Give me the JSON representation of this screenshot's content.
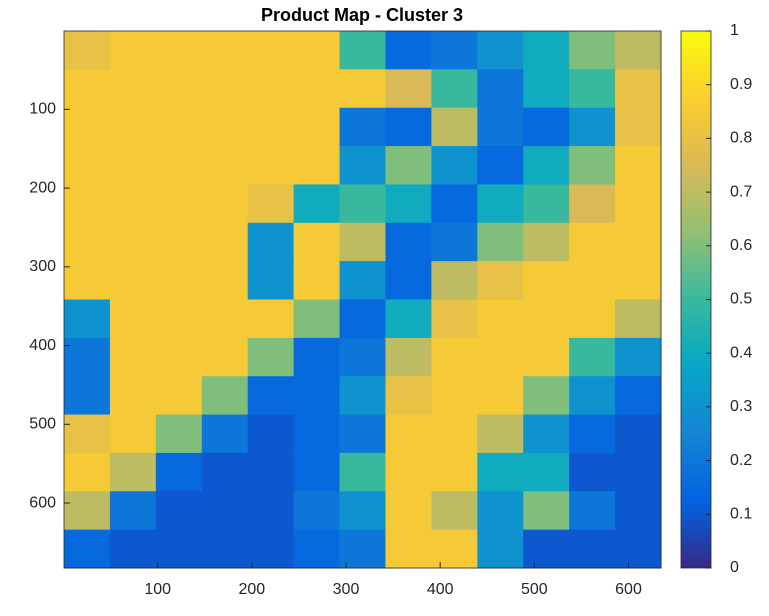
{
  "chart_data": {
    "type": "heatmap",
    "title": "Product Map - Cluster 3",
    "xlim": [
      0.5,
      634.5
    ],
    "xticks": [
      100,
      200,
      300,
      400,
      500,
      600
    ],
    "ylim": [
      0.5,
      682.5
    ],
    "yticks": [
      100,
      200,
      300,
      400,
      500,
      600
    ],
    "y_reversed": true,
    "clim": [
      0,
      1
    ],
    "cticks": [
      0,
      0.1,
      0.2,
      0.3,
      0.4,
      0.5,
      0.6,
      0.7,
      0.8,
      0.9,
      1
    ],
    "colormap": [
      "#352a87",
      "#0363e1",
      "#1485d4",
      "#06a7c6",
      "#38b99e",
      "#92bf73",
      "#d9ba56",
      "#fcce2e",
      "#f9fb0e"
    ],
    "z": [
      [
        0.8,
        0.85,
        0.85,
        0.85,
        0.85,
        0.85,
        0.5,
        0.15,
        0.2,
        0.3,
        0.4,
        0.6,
        0.7
      ],
      [
        0.85,
        0.85,
        0.85,
        0.85,
        0.85,
        0.85,
        0.85,
        0.75,
        0.5,
        0.2,
        0.4,
        0.5,
        0.8
      ],
      [
        0.85,
        0.85,
        0.85,
        0.85,
        0.85,
        0.85,
        0.2,
        0.15,
        0.7,
        0.2,
        0.15,
        0.3,
        0.8
      ],
      [
        0.85,
        0.85,
        0.85,
        0.85,
        0.85,
        0.85,
        0.3,
        0.6,
        0.3,
        0.15,
        0.4,
        0.6,
        0.85
      ],
      [
        0.85,
        0.85,
        0.85,
        0.85,
        0.8,
        0.4,
        0.5,
        0.4,
        0.15,
        0.4,
        0.5,
        0.75,
        0.85
      ],
      [
        0.85,
        0.85,
        0.85,
        0.85,
        0.3,
        0.85,
        0.7,
        0.15,
        0.2,
        0.6,
        0.7,
        0.85,
        0.85
      ],
      [
        0.85,
        0.85,
        0.85,
        0.85,
        0.3,
        0.85,
        0.3,
        0.15,
        0.7,
        0.8,
        0.85,
        0.85,
        0.85
      ],
      [
        0.3,
        0.85,
        0.85,
        0.85,
        0.85,
        0.6,
        0.15,
        0.4,
        0.8,
        0.85,
        0.85,
        0.85,
        0.7
      ],
      [
        0.2,
        0.85,
        0.85,
        0.85,
        0.6,
        0.15,
        0.2,
        0.7,
        0.85,
        0.85,
        0.85,
        0.5,
        0.3
      ],
      [
        0.2,
        0.85,
        0.85,
        0.6,
        0.15,
        0.15,
        0.3,
        0.8,
        0.85,
        0.85,
        0.6,
        0.3,
        0.15
      ],
      [
        0.8,
        0.85,
        0.6,
        0.2,
        0.1,
        0.15,
        0.2,
        0.85,
        0.85,
        0.7,
        0.3,
        0.15,
        0.1
      ],
      [
        0.85,
        0.7,
        0.15,
        0.1,
        0.1,
        0.15,
        0.5,
        0.85,
        0.85,
        0.4,
        0.4,
        0.1,
        0.1
      ],
      [
        0.7,
        0.2,
        0.1,
        0.1,
        0.1,
        0.2,
        0.3,
        0.85,
        0.7,
        0.3,
        0.6,
        0.2,
        0.1
      ],
      [
        0.15,
        0.1,
        0.1,
        0.1,
        0.1,
        0.15,
        0.2,
        0.85,
        0.85,
        0.3,
        0.1,
        0.1,
        0.1
      ]
    ]
  }
}
